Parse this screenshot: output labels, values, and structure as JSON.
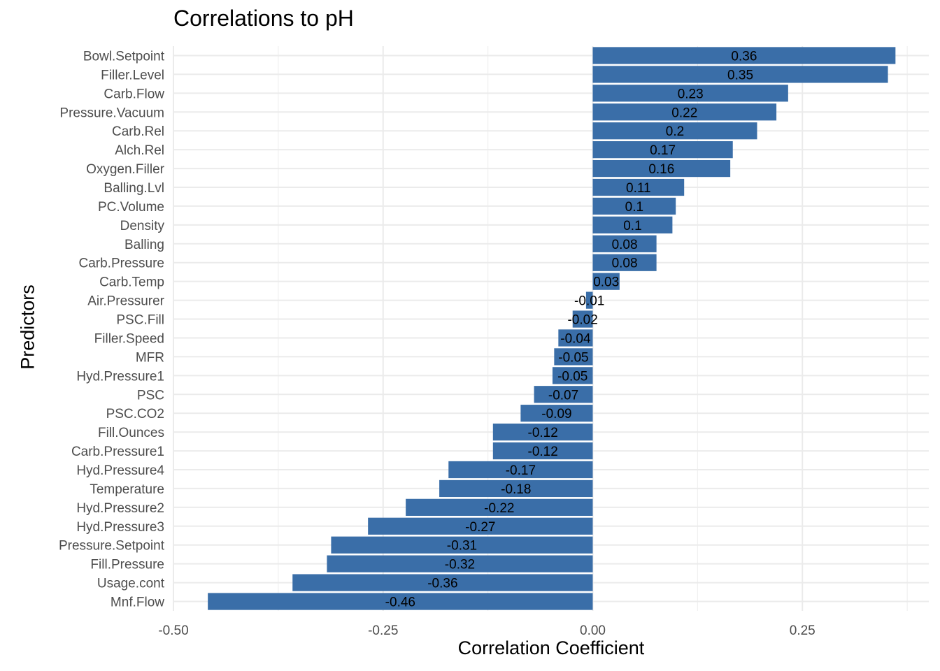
{
  "chart_data": {
    "type": "bar",
    "orientation": "horizontal",
    "title": "Correlations to pH",
    "xlabel": "Correlation Coefficient",
    "ylabel": "Predictors",
    "xlim": [
      -0.5,
      0.36
    ],
    "xticks": [
      -0.5,
      -0.25,
      0.0,
      0.25
    ],
    "xtick_labels": [
      "-0.50",
      "-0.25",
      "0.00",
      "0.25"
    ],
    "bar_color": "#3a6ea8",
    "grid": true,
    "categories": [
      "Bowl.Setpoint",
      "Filler.Level",
      "Carb.Flow",
      "Pressure.Vacuum",
      "Carb.Rel",
      "Alch.Rel",
      "Oxygen.Filler",
      "Balling.Lvl",
      "PC.Volume",
      "Density",
      "Balling",
      "Carb.Pressure",
      "Carb.Temp",
      "Air.Pressurer",
      "PSC.Fill",
      "Filler.Speed",
      "MFR",
      "Hyd.Pressure1",
      "PSC",
      "PSC.CO2",
      "Fill.Ounces",
      "Carb.Pressure1",
      "Hyd.Pressure4",
      "Temperature",
      "Hyd.Pressure2",
      "Hyd.Pressure3",
      "Pressure.Setpoint",
      "Fill.Pressure",
      "Usage.cont",
      "Mnf.Flow"
    ],
    "values": [
      0.361,
      0.352,
      0.233,
      0.219,
      0.196,
      0.167,
      0.164,
      0.109,
      0.099,
      0.095,
      0.076,
      0.076,
      0.032,
      -0.008,
      -0.024,
      -0.041,
      -0.046,
      -0.048,
      -0.07,
      -0.086,
      -0.119,
      -0.119,
      -0.172,
      -0.183,
      -0.223,
      -0.268,
      -0.312,
      -0.317,
      -0.358,
      -0.459
    ],
    "value_labels": [
      "0.36",
      "0.35",
      "0.23",
      "0.22",
      "0.2",
      "0.17",
      "0.16",
      "0.11",
      "0.1",
      "0.1",
      "0.08",
      "0.08",
      "0.03",
      "-0.01",
      "-0.02",
      "-0.04",
      "-0.05",
      "-0.05",
      "-0.07",
      "-0.09",
      "-0.12",
      "-0.12",
      "-0.17",
      "-0.18",
      "-0.22",
      "-0.27",
      "-0.31",
      "-0.32",
      "-0.36",
      "-0.46"
    ]
  }
}
